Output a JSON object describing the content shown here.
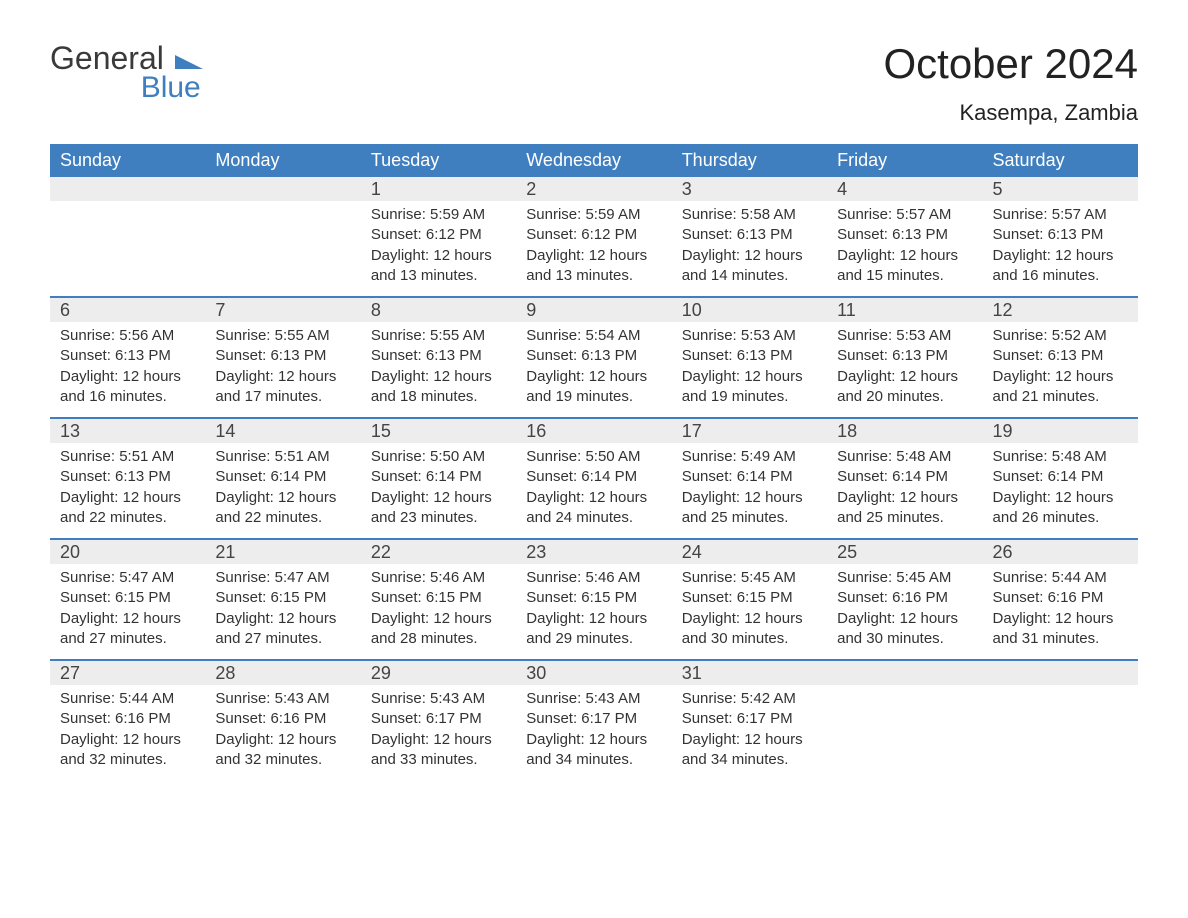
{
  "logo": {
    "line1": "General",
    "line2": "Blue",
    "triangle_color": "#3f7fc0"
  },
  "title": "October 2024",
  "location": "Kasempa, Zambia",
  "colors": {
    "header_bg": "#3f7fc0",
    "header_text": "#ffffff",
    "daynum_bg": "#ededed",
    "text": "#333333",
    "divider": "#3f7fc0",
    "page_bg": "#ffffff"
  },
  "typography": {
    "title_fontsize": 42,
    "location_fontsize": 22,
    "weekday_fontsize": 18,
    "daynum_fontsize": 18,
    "body_fontsize": 15
  },
  "layout": {
    "columns": 7,
    "rows": 5
  },
  "weekdays": [
    "Sunday",
    "Monday",
    "Tuesday",
    "Wednesday",
    "Thursday",
    "Friday",
    "Saturday"
  ],
  "labels": {
    "sunrise": "Sunrise:",
    "sunset": "Sunset:",
    "daylight": "Daylight:"
  },
  "weeks": [
    [
      {
        "day": "",
        "empty": true
      },
      {
        "day": "",
        "empty": true
      },
      {
        "day": "1",
        "sunrise": "5:59 AM",
        "sunset": "6:12 PM",
        "daylight": "12 hours and 13 minutes."
      },
      {
        "day": "2",
        "sunrise": "5:59 AM",
        "sunset": "6:12 PM",
        "daylight": "12 hours and 13 minutes."
      },
      {
        "day": "3",
        "sunrise": "5:58 AM",
        "sunset": "6:13 PM",
        "daylight": "12 hours and 14 minutes."
      },
      {
        "day": "4",
        "sunrise": "5:57 AM",
        "sunset": "6:13 PM",
        "daylight": "12 hours and 15 minutes."
      },
      {
        "day": "5",
        "sunrise": "5:57 AM",
        "sunset": "6:13 PM",
        "daylight": "12 hours and 16 minutes."
      }
    ],
    [
      {
        "day": "6",
        "sunrise": "5:56 AM",
        "sunset": "6:13 PM",
        "daylight": "12 hours and 16 minutes."
      },
      {
        "day": "7",
        "sunrise": "5:55 AM",
        "sunset": "6:13 PM",
        "daylight": "12 hours and 17 minutes."
      },
      {
        "day": "8",
        "sunrise": "5:55 AM",
        "sunset": "6:13 PM",
        "daylight": "12 hours and 18 minutes."
      },
      {
        "day": "9",
        "sunrise": "5:54 AM",
        "sunset": "6:13 PM",
        "daylight": "12 hours and 19 minutes."
      },
      {
        "day": "10",
        "sunrise": "5:53 AM",
        "sunset": "6:13 PM",
        "daylight": "12 hours and 19 minutes."
      },
      {
        "day": "11",
        "sunrise": "5:53 AM",
        "sunset": "6:13 PM",
        "daylight": "12 hours and 20 minutes."
      },
      {
        "day": "12",
        "sunrise": "5:52 AM",
        "sunset": "6:13 PM",
        "daylight": "12 hours and 21 minutes."
      }
    ],
    [
      {
        "day": "13",
        "sunrise": "5:51 AM",
        "sunset": "6:13 PM",
        "daylight": "12 hours and 22 minutes."
      },
      {
        "day": "14",
        "sunrise": "5:51 AM",
        "sunset": "6:14 PM",
        "daylight": "12 hours and 22 minutes."
      },
      {
        "day": "15",
        "sunrise": "5:50 AM",
        "sunset": "6:14 PM",
        "daylight": "12 hours and 23 minutes."
      },
      {
        "day": "16",
        "sunrise": "5:50 AM",
        "sunset": "6:14 PM",
        "daylight": "12 hours and 24 minutes."
      },
      {
        "day": "17",
        "sunrise": "5:49 AM",
        "sunset": "6:14 PM",
        "daylight": "12 hours and 25 minutes."
      },
      {
        "day": "18",
        "sunrise": "5:48 AM",
        "sunset": "6:14 PM",
        "daylight": "12 hours and 25 minutes."
      },
      {
        "day": "19",
        "sunrise": "5:48 AM",
        "sunset": "6:14 PM",
        "daylight": "12 hours and 26 minutes."
      }
    ],
    [
      {
        "day": "20",
        "sunrise": "5:47 AM",
        "sunset": "6:15 PM",
        "daylight": "12 hours and 27 minutes."
      },
      {
        "day": "21",
        "sunrise": "5:47 AM",
        "sunset": "6:15 PM",
        "daylight": "12 hours and 27 minutes."
      },
      {
        "day": "22",
        "sunrise": "5:46 AM",
        "sunset": "6:15 PM",
        "daylight": "12 hours and 28 minutes."
      },
      {
        "day": "23",
        "sunrise": "5:46 AM",
        "sunset": "6:15 PM",
        "daylight": "12 hours and 29 minutes."
      },
      {
        "day": "24",
        "sunrise": "5:45 AM",
        "sunset": "6:15 PM",
        "daylight": "12 hours and 30 minutes."
      },
      {
        "day": "25",
        "sunrise": "5:45 AM",
        "sunset": "6:16 PM",
        "daylight": "12 hours and 30 minutes."
      },
      {
        "day": "26",
        "sunrise": "5:44 AM",
        "sunset": "6:16 PM",
        "daylight": "12 hours and 31 minutes."
      }
    ],
    [
      {
        "day": "27",
        "sunrise": "5:44 AM",
        "sunset": "6:16 PM",
        "daylight": "12 hours and 32 minutes."
      },
      {
        "day": "28",
        "sunrise": "5:43 AM",
        "sunset": "6:16 PM",
        "daylight": "12 hours and 32 minutes."
      },
      {
        "day": "29",
        "sunrise": "5:43 AM",
        "sunset": "6:17 PM",
        "daylight": "12 hours and 33 minutes."
      },
      {
        "day": "30",
        "sunrise": "5:43 AM",
        "sunset": "6:17 PM",
        "daylight": "12 hours and 34 minutes."
      },
      {
        "day": "31",
        "sunrise": "5:42 AM",
        "sunset": "6:17 PM",
        "daylight": "12 hours and 34 minutes."
      },
      {
        "day": "",
        "empty": true
      },
      {
        "day": "",
        "empty": true
      }
    ]
  ]
}
